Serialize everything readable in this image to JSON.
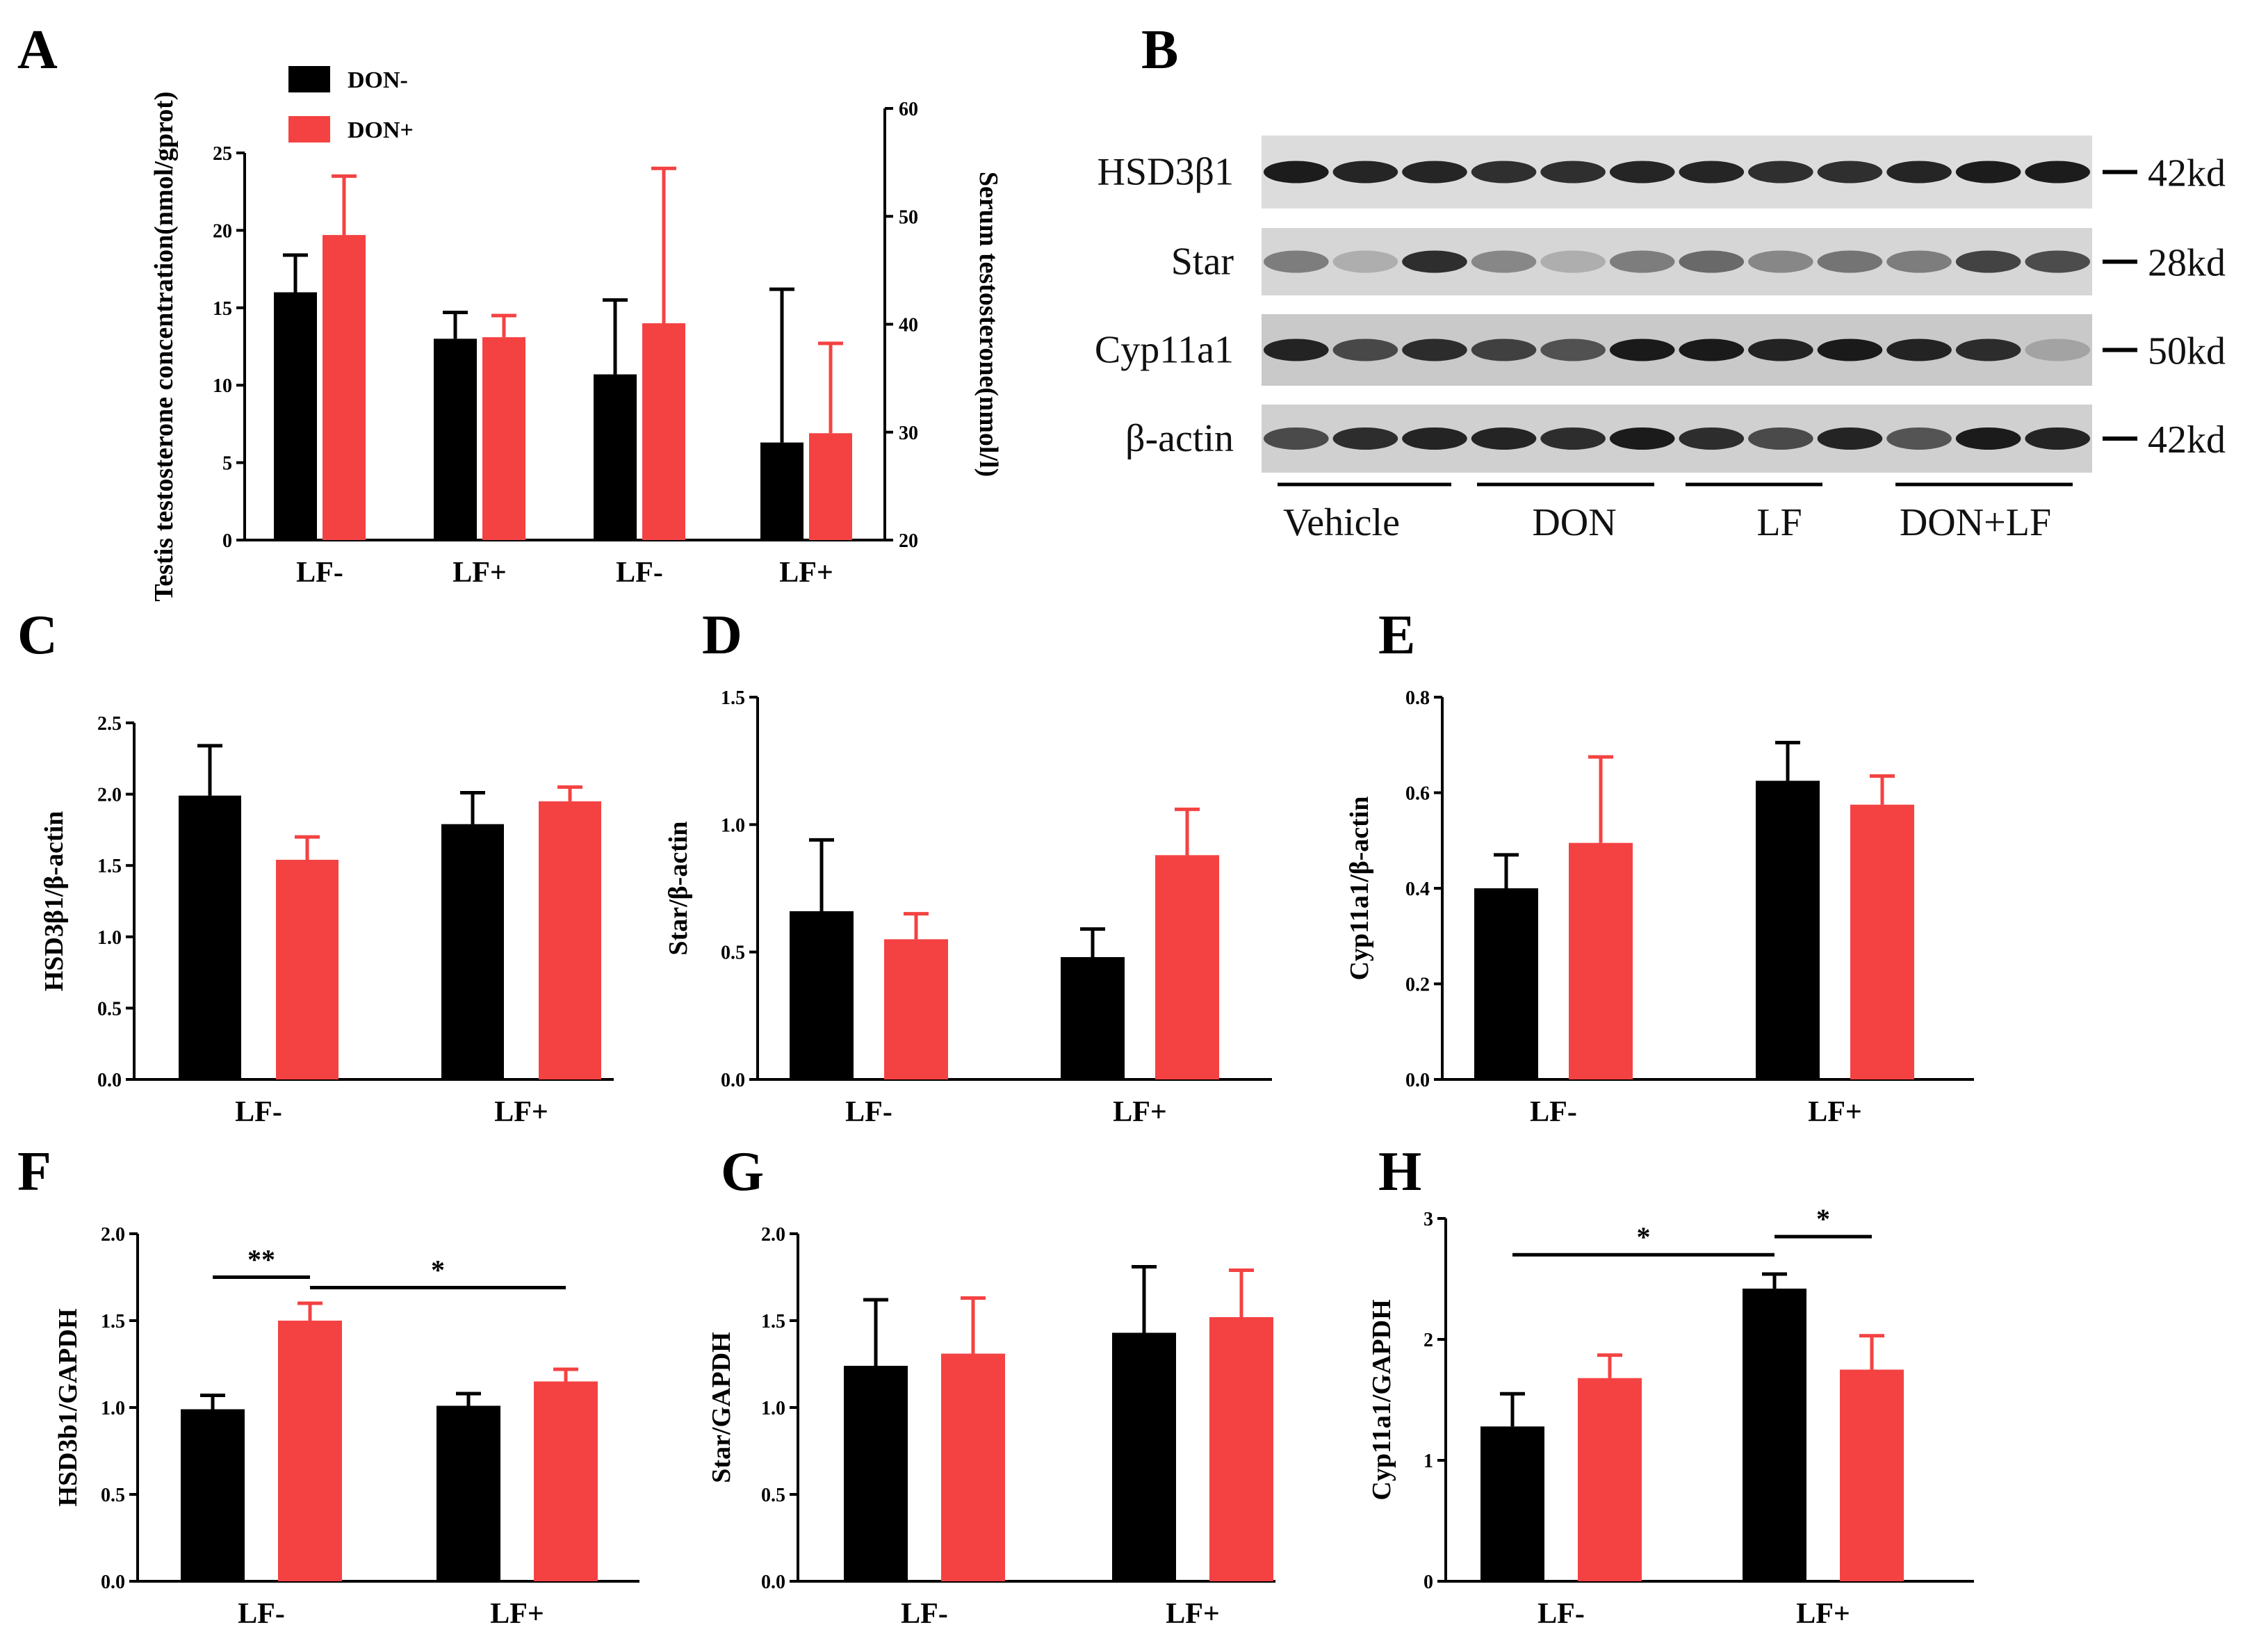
{
  "colors": {
    "don_minus": "#000000",
    "don_plus": "#f44242"
  },
  "legend": {
    "don_minus": "DON-",
    "don_plus": "DON+"
  },
  "chart_data": [
    {
      "id": "A",
      "letter": "A",
      "type": "bar",
      "categories": [
        "LF-",
        "LF+",
        "LF-",
        "LF+"
      ],
      "series": [
        {
          "name": "DON-",
          "values": [
            16.0,
            13.0,
            10.7,
            6.3
          ],
          "errors": [
            2.4,
            1.7,
            4.8,
            9.9
          ]
        },
        {
          "name": "DON+",
          "values": [
            19.7,
            13.1,
            14.0,
            6.9
          ],
          "errors": [
            3.8,
            1.4,
            10.0,
            5.8
          ]
        }
      ],
      "ylabel": "Testis testosterone concentration(nmol/gprot)",
      "ylim": [
        0,
        25
      ],
      "yticks": [
        "0",
        "5",
        "10",
        "15",
        "20",
        "25"
      ],
      "y2label": "Serum testosterone(nmol/l)",
      "y2lim": [
        20,
        60
      ],
      "y2ticks": [
        "20",
        "30",
        "40",
        "50",
        "60"
      ]
    },
    {
      "id": "C",
      "letter": "C",
      "type": "bar",
      "categories": [
        "LF-",
        "LF+"
      ],
      "series": [
        {
          "name": "DON-",
          "values": [
            1.99,
            1.79
          ],
          "errors": [
            0.35,
            0.22
          ]
        },
        {
          "name": "DON+",
          "values": [
            1.54,
            1.95
          ],
          "errors": [
            0.16,
            0.1
          ]
        }
      ],
      "ylabel": "HSD3β1/β-actin",
      "ylim": [
        0,
        2.5
      ],
      "yticks": [
        "0.0",
        "0.5",
        "1.0",
        "1.5",
        "2.0",
        "2.5"
      ]
    },
    {
      "id": "D",
      "letter": "D",
      "type": "bar",
      "categories": [
        "LF-",
        "LF+"
      ],
      "series": [
        {
          "name": "DON-",
          "values": [
            0.66,
            0.48
          ],
          "errors": [
            0.28,
            0.11
          ]
        },
        {
          "name": "DON+",
          "values": [
            0.55,
            0.88
          ],
          "errors": [
            0.1,
            0.18
          ]
        }
      ],
      "ylabel": "Star/β-actin",
      "ylim": [
        0,
        1.5
      ],
      "yticks": [
        "0.0",
        "0.5",
        "1.0",
        "1.5"
      ]
    },
    {
      "id": "E",
      "letter": "E",
      "type": "bar",
      "categories": [
        "LF-",
        "LF+"
      ],
      "series": [
        {
          "name": "DON-",
          "values": [
            0.4,
            0.625
          ],
          "errors": [
            0.07,
            0.08
          ]
        },
        {
          "name": "DON+",
          "values": [
            0.495,
            0.575
          ],
          "errors": [
            0.18,
            0.06
          ]
        }
      ],
      "ylabel": "Cyp11a1/β-actin",
      "ylim": [
        0,
        0.8
      ],
      "yticks": [
        "0.0",
        "0.2",
        "0.4",
        "0.6",
        "0.8"
      ]
    },
    {
      "id": "F",
      "letter": "F",
      "type": "bar",
      "categories": [
        "LF-",
        "LF+"
      ],
      "series": [
        {
          "name": "DON-",
          "values": [
            0.99,
            1.01
          ],
          "errors": [
            0.08,
            0.07
          ]
        },
        {
          "name": "DON+",
          "values": [
            1.5,
            1.15
          ],
          "errors": [
            0.1,
            0.07
          ]
        }
      ],
      "ylabel": "HSD3b1/GAPDH",
      "ylim": [
        0,
        2.0
      ],
      "yticks": [
        "0.0",
        "0.5",
        "1.0",
        "1.5",
        "2.0"
      ],
      "significance": [
        {
          "from": [
            0,
            0
          ],
          "to": [
            0,
            1
          ],
          "y": 1.75,
          "label": "**"
        },
        {
          "from": [
            0,
            1
          ],
          "to": [
            1,
            1
          ],
          "y": 1.69,
          "label": "*"
        }
      ]
    },
    {
      "id": "G",
      "letter": "G",
      "type": "bar",
      "categories": [
        "LF-",
        "LF+"
      ],
      "series": [
        {
          "name": "DON-",
          "values": [
            1.24,
            1.43
          ],
          "errors": [
            0.38,
            0.38
          ]
        },
        {
          "name": "DON+",
          "values": [
            1.31,
            1.52
          ],
          "errors": [
            0.32,
            0.27
          ]
        }
      ],
      "ylabel": "Star/GAPDH",
      "ylim": [
        0,
        2.0
      ],
      "yticks": [
        "0.0",
        "0.5",
        "1.0",
        "1.5",
        "2.0"
      ]
    },
    {
      "id": "H",
      "letter": "H",
      "type": "bar",
      "categories": [
        "LF-",
        "LF+"
      ],
      "series": [
        {
          "name": "DON-",
          "values": [
            1.28,
            2.42
          ],
          "errors": [
            0.27,
            0.12
          ]
        },
        {
          "name": "DON+",
          "values": [
            1.68,
            1.75
          ],
          "errors": [
            0.19,
            0.28
          ]
        }
      ],
      "ylabel": "Cyp11a1/GAPDH",
      "ylim": [
        0,
        3
      ],
      "yticks": [
        "0",
        "1",
        "2",
        "3"
      ],
      "significance": [
        {
          "from": [
            0,
            0
          ],
          "to": [
            1,
            0
          ],
          "y": 2.7,
          "label": "*"
        },
        {
          "from": [
            1,
            0
          ],
          "to": [
            1,
            1
          ],
          "y": 2.85,
          "label": "*"
        }
      ]
    }
  ],
  "blot": {
    "letter": "B",
    "rows": [
      {
        "label": "HSD3β1",
        "size": "42kd"
      },
      {
        "label": "Star",
        "size": "28kd"
      },
      {
        "label": "Cyp11a1",
        "size": "50kd"
      },
      {
        "label": "β-actin",
        "size": "42kd"
      }
    ],
    "groups": [
      "Vehicle",
      "DON",
      "LF",
      "DON+LF"
    ],
    "band_intensity": [
      [
        0.95,
        0.9,
        0.9,
        0.85,
        0.85,
        0.9,
        0.9,
        0.85,
        0.85,
        0.9,
        0.95,
        0.95
      ],
      [
        0.45,
        0.2,
        0.85,
        0.4,
        0.2,
        0.45,
        0.55,
        0.4,
        0.5,
        0.45,
        0.75,
        0.7
      ],
      [
        0.9,
        0.7,
        0.85,
        0.75,
        0.65,
        0.95,
        0.95,
        0.9,
        0.95,
        0.9,
        0.85,
        0.2
      ],
      [
        0.7,
        0.85,
        0.9,
        0.9,
        0.85,
        0.95,
        0.85,
        0.7,
        0.9,
        0.65,
        0.95,
        0.9
      ]
    ]
  }
}
